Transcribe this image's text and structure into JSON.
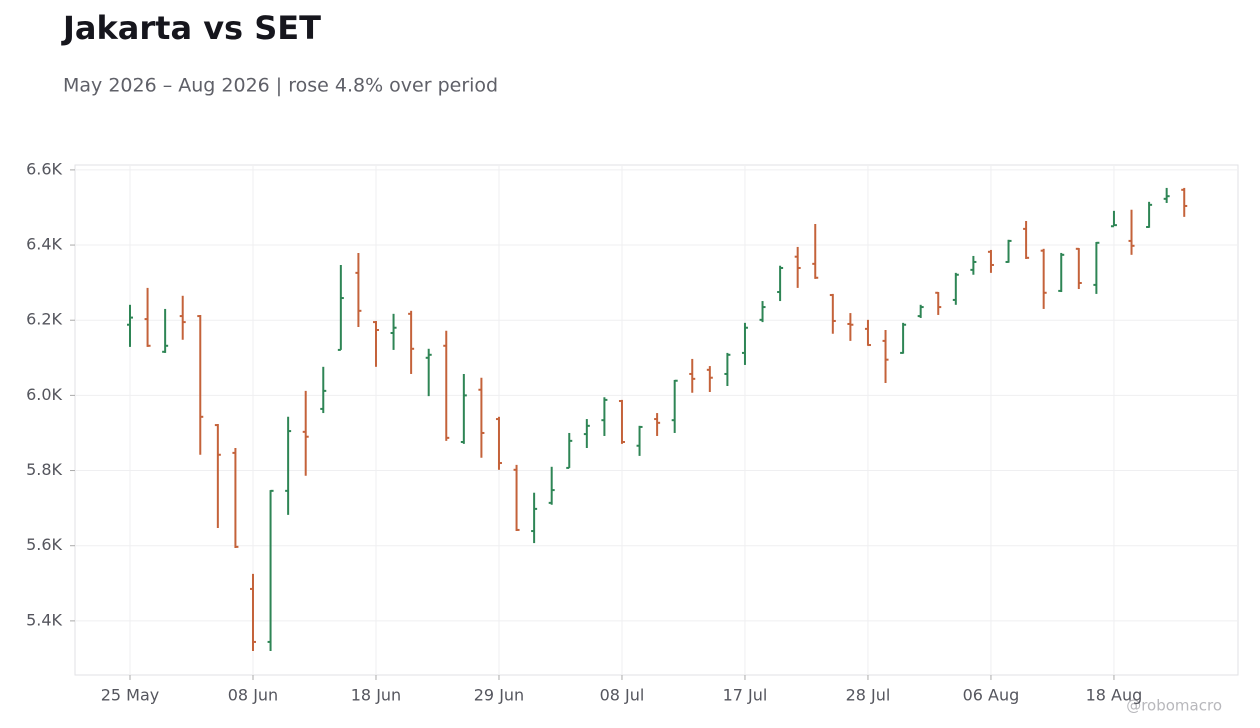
{
  "chart_data": {
    "type": "ohlc",
    "title": "Jakarta vs SET",
    "subtitle": "May 2026 – Aug 2026 | rose 4.8% over period",
    "watermark": "@robomacro",
    "categories": [
      "25 May",
      null,
      null,
      null,
      null,
      null,
      null,
      "08 Jun",
      null,
      null,
      null,
      null,
      null,
      null,
      "18 Jun",
      null,
      null,
      null,
      null,
      null,
      null,
      "29 Jun",
      null,
      null,
      null,
      null,
      null,
      null,
      "08 Jul",
      null,
      null,
      null,
      null,
      null,
      null,
      "17 Jul",
      null,
      null,
      null,
      null,
      null,
      null,
      "28 Jul",
      null,
      null,
      null,
      null,
      null,
      null,
      "06 Aug",
      null,
      null,
      null,
      null,
      null,
      null,
      "18 Aug",
      null,
      null,
      null,
      null
    ],
    "open": [
      6188,
      6203,
      6116,
      6211,
      6211,
      5921,
      5847,
      5485,
      5344,
      5746,
      5903,
      5964,
      6121,
      6326,
      6195,
      6166,
      6217,
      6100,
      6132,
      5876,
      6015,
      5937,
      5802,
      5639,
      5714,
      5807,
      5897,
      5934,
      5985,
      5866,
      5937,
      5934,
      6057,
      6068,
      6057,
      6113,
      6201,
      6275,
      6369,
      6350,
      6267,
      6190,
      6177,
      6145,
      6113,
      6211,
      6273,
      6254,
      6334,
      6382,
      6355,
      6443,
      6385,
      6278,
      6390,
      6294,
      6450,
      6411,
      6448,
      6523,
      6547
    ],
    "high": [
      6241,
      6286,
      6230,
      6265,
      6214,
      5924,
      5860,
      5525,
      5748,
      5943,
      6012,
      6076,
      6347,
      6379,
      6198,
      6217,
      6225,
      6124,
      6172,
      6057,
      6047,
      5943,
      5815,
      5741,
      5810,
      5900,
      5937,
      5995,
      5988,
      5919,
      5953,
      6041,
      6097,
      6078,
      6113,
      6193,
      6251,
      6345,
      6395,
      6456,
      6270,
      6219,
      6201,
      6174,
      6193,
      6241,
      6275,
      6326,
      6371,
      6387,
      6414,
      6464,
      6390,
      6379,
      6392,
      6408,
      6491,
      6494,
      6515,
      6552,
      6552
    ],
    "low": [
      6129,
      6129,
      6113,
      6148,
      5842,
      5647,
      5594,
      5320,
      5320,
      5682,
      5786,
      5953,
      6121,
      6182,
      6076,
      6121,
      6057,
      5998,
      5879,
      5871,
      5834,
      5802,
      5639,
      5607,
      5709,
      5807,
      5860,
      5892,
      5871,
      5839,
      5892,
      5900,
      6007,
      6009,
      6025,
      6081,
      6195,
      6251,
      6286,
      6310,
      6164,
      6145,
      6132,
      6033,
      6111,
      6206,
      6214,
      6241,
      6321,
      6326,
      6353,
      6363,
      6230,
      6275,
      6283,
      6270,
      6451,
      6374,
      6446,
      6512,
      6475
    ],
    "close": [
      6207,
      6132,
      6132,
      6195,
      5943,
      5842,
      5597,
      5344,
      5746,
      5905,
      5890,
      6012,
      6259,
      6225,
      6174,
      6180,
      6124,
      6108,
      5887,
      6000,
      5900,
      5820,
      5642,
      5698,
      5748,
      5879,
      5919,
      5988,
      5876,
      5916,
      5927,
      6039,
      6044,
      6047,
      6108,
      6180,
      6235,
      6339,
      6339,
      6313,
      6198,
      6188,
      6134,
      6095,
      6188,
      6235,
      6235,
      6321,
      6355,
      6347,
      6411,
      6366,
      6273,
      6374,
      6299,
      6406,
      6453,
      6398,
      6507,
      6530,
      6504
    ],
    "up_color": "#2e8555",
    "down_color": "#c4623a",
    "ylim": [
      5256,
      6613
    ],
    "yticks": [
      {
        "value": 5400,
        "label": "5.4K"
      },
      {
        "value": 5600,
        "label": "5.6K"
      },
      {
        "value": 5800,
        "label": "5.8K"
      },
      {
        "value": 6000,
        "label": "6.0K"
      },
      {
        "value": 6200,
        "label": "6.2K"
      },
      {
        "value": 6400,
        "label": "6.4K"
      },
      {
        "value": 6600,
        "label": "6.6K"
      }
    ],
    "grid": true
  }
}
